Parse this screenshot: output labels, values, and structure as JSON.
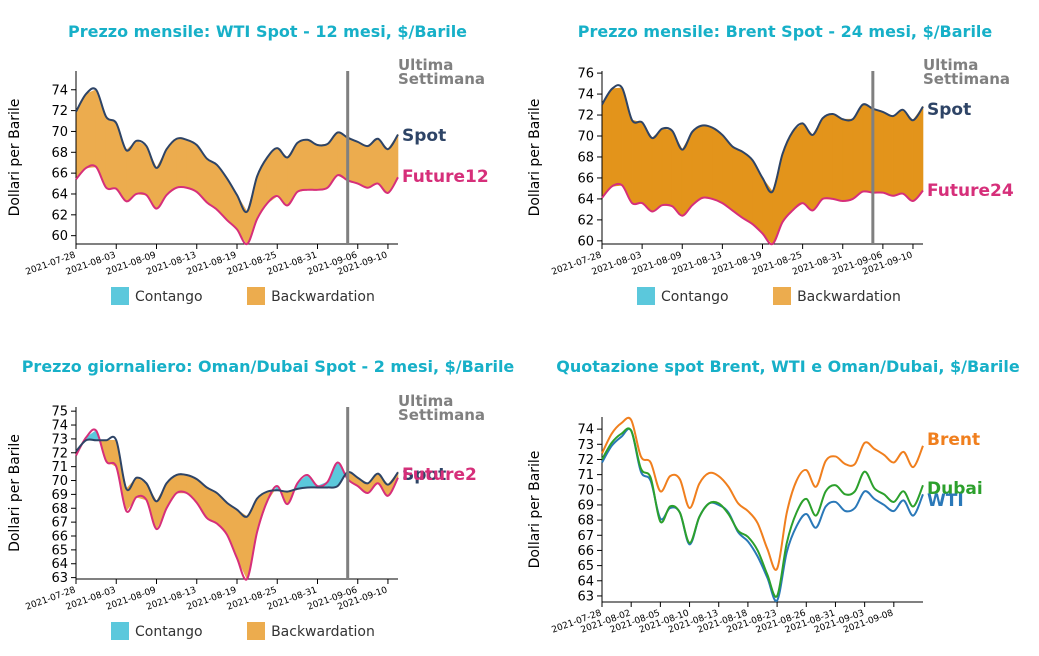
{
  "colors": {
    "title": "#17b0c8",
    "spot": "#2e4466",
    "future": "#d62f7a",
    "contango": "#5bc8dc",
    "backwardation": "#ecac4e",
    "backwardation_dark": "#e3941b",
    "week_line": "#808080",
    "brent": "#f07f1e",
    "dubai": "#2ca02c",
    "wti": "#2a78b8"
  },
  "legend": {
    "contango": "Contango",
    "backwardation": "Backwardation"
  },
  "last_week_label": [
    "Ultima",
    "Settimana"
  ],
  "chart_data": [
    {
      "type": "area",
      "title": "Prezzo mensile: WTI Spot - 12 mesi, $/Barile",
      "ylabel": "Dollari per Barile",
      "xlabel": "",
      "x_ticks": [
        "2021-07-28",
        "2021-08-03",
        "2021-08-09",
        "2021-08-13",
        "2021-08-19",
        "2021-08-25",
        "2021-08-31",
        "2021-09-06",
        "2021-09-10"
      ],
      "x_tick_pos": [
        0,
        4,
        8,
        12,
        16,
        20,
        24,
        28,
        31
      ],
      "ylim": [
        59.2,
        75.8
      ],
      "y_ticks": [
        60,
        62,
        64,
        66,
        68,
        70,
        72,
        74
      ],
      "last_week_index": 27,
      "series": [
        {
          "name": "Spot",
          "values": [
            71.9,
            73.6,
            74.0,
            71.4,
            70.8,
            68.2,
            69.1,
            68.6,
            66.5,
            68.3,
            69.3,
            69.2,
            68.7,
            67.4,
            66.8,
            65.5,
            63.9,
            62.3,
            65.7,
            67.5,
            68.4,
            67.5,
            68.9,
            69.2,
            68.7,
            68.8,
            69.9,
            69.4,
            69.0,
            68.6,
            69.3,
            68.3,
            69.7
          ]
        },
        {
          "name": "Future12",
          "values": [
            65.4,
            66.5,
            66.6,
            64.6,
            64.5,
            63.3,
            64.0,
            63.9,
            62.6,
            63.9,
            64.6,
            64.6,
            64.2,
            63.2,
            62.5,
            61.5,
            60.6,
            59.2,
            61.6,
            63.1,
            63.8,
            62.9,
            64.2,
            64.4,
            64.4,
            64.6,
            65.8,
            65.3,
            65.0,
            64.6,
            65.0,
            64.1,
            65.6
          ]
        }
      ]
    },
    {
      "type": "area",
      "title": "Prezzo mensile: Brent Spot - 24 mesi, $/Barile",
      "ylabel": "Dollari per Barile",
      "xlabel": "",
      "x_ticks": [
        "2021-07-28",
        "2021-08-03",
        "2021-08-09",
        "2021-08-13",
        "2021-08-19",
        "2021-08-25",
        "2021-08-31",
        "2021-09-06",
        "2021-09-10"
      ],
      "x_tick_pos": [
        0,
        4,
        8,
        12,
        16,
        20,
        24,
        28,
        31
      ],
      "ylim": [
        59.7,
        76.2
      ],
      "y_ticks": [
        60,
        62,
        64,
        66,
        68,
        70,
        72,
        74,
        76
      ],
      "last_week_index": 27,
      "series": [
        {
          "name": "Spot",
          "values": [
            73.0,
            74.5,
            74.6,
            71.5,
            71.3,
            69.8,
            70.7,
            70.5,
            68.7,
            70.4,
            71.0,
            70.8,
            70.1,
            69.0,
            68.5,
            67.7,
            66.0,
            64.7,
            68.3,
            70.4,
            71.2,
            70.1,
            71.7,
            72.1,
            71.6,
            71.6,
            73.0,
            72.6,
            72.3,
            71.9,
            72.5,
            71.5,
            72.8
          ]
        },
        {
          "name": "Future24",
          "values": [
            64.1,
            65.2,
            65.3,
            63.6,
            63.6,
            62.8,
            63.4,
            63.3,
            62.4,
            63.4,
            64.1,
            64.0,
            63.6,
            62.9,
            62.2,
            61.6,
            60.7,
            59.7,
            61.8,
            62.9,
            63.6,
            62.9,
            64.0,
            64.0,
            63.8,
            64.0,
            64.7,
            64.6,
            64.6,
            64.3,
            64.5,
            63.8,
            64.8
          ]
        }
      ]
    },
    {
      "type": "area",
      "title": "Prezzo giornaliero: Oman/Dubai Spot - 2 mesi, $/Barile",
      "ylabel": "Dollari per Barile",
      "xlabel": "",
      "x_ticks": [
        "2021-07-28",
        "2021-08-03",
        "2021-08-09",
        "2021-08-13",
        "2021-08-19",
        "2021-08-25",
        "2021-08-31",
        "2021-09-06",
        "2021-09-10"
      ],
      "x_tick_pos": [
        0,
        4,
        8,
        12,
        16,
        20,
        24,
        28,
        31
      ],
      "ylim": [
        62.9,
        75.3
      ],
      "y_ticks": [
        63,
        64,
        65,
        66,
        67,
        68,
        69,
        70,
        71,
        72,
        73,
        74,
        75
      ],
      "last_week_index": 27,
      "series": [
        {
          "name": "Spot",
          "values": [
            72.1,
            72.9,
            72.9,
            72.9,
            72.9,
            69.4,
            70.2,
            69.8,
            68.5,
            69.8,
            70.4,
            70.4,
            70.1,
            69.5,
            69.1,
            68.4,
            67.9,
            67.4,
            68.7,
            69.2,
            69.3,
            69.2,
            69.4,
            69.5,
            69.5,
            69.5,
            69.6,
            70.6,
            70.2,
            69.8,
            70.5,
            69.7,
            70.6
          ]
        },
        {
          "name": "Future2",
          "values": [
            71.8,
            73.1,
            73.6,
            71.4,
            71.0,
            67.8,
            68.8,
            68.6,
            66.5,
            68.0,
            69.1,
            69.1,
            68.4,
            67.3,
            66.9,
            66.1,
            64.4,
            62.9,
            66.3,
            68.5,
            69.6,
            68.3,
            69.8,
            70.4,
            69.6,
            69.9,
            71.3,
            70.1,
            69.6,
            69.1,
            69.8,
            68.9,
            70.2
          ]
        }
      ]
    },
    {
      "type": "line",
      "title": "Quotazione spot Brent, WTI e Oman/Dubai, $/Barile",
      "ylabel": "Dollari per Barile",
      "xlabel": "",
      "x_ticks": [
        "2021-07-28",
        "2021-08-02",
        "2021-08-05",
        "2021-08-10",
        "2021-08-13",
        "2021-08-18",
        "2021-08-23",
        "2021-08-26",
        "2021-08-31",
        "2021-09-03",
        "2021-09-08"
      ],
      "x_tick_pos": [
        0,
        3,
        6,
        9,
        12,
        15,
        18,
        21,
        24,
        27,
        30
      ],
      "ylim": [
        62.6,
        74.8
      ],
      "y_ticks": [
        63,
        64,
        65,
        66,
        67,
        68,
        69,
        70,
        71,
        72,
        73,
        74
      ],
      "series": [
        {
          "name": "Brent",
          "values": [
            72.4,
            73.7,
            74.4,
            74.6,
            72.2,
            71.8,
            69.9,
            70.9,
            70.7,
            68.8,
            70.4,
            71.1,
            70.9,
            70.2,
            69.1,
            68.6,
            67.8,
            66.1,
            64.8,
            68.5,
            70.6,
            71.3,
            70.2,
            71.9,
            72.2,
            71.7,
            71.7,
            73.1,
            72.7,
            72.3,
            71.8,
            72.5,
            71.5,
            72.9
          ]
        },
        {
          "name": "Dubai",
          "values": [
            72.0,
            73.1,
            73.7,
            73.9,
            71.4,
            70.8,
            67.9,
            68.9,
            68.5,
            66.5,
            68.2,
            69.1,
            69.1,
            68.4,
            67.3,
            66.9,
            66.0,
            64.4,
            63.0,
            66.5,
            68.5,
            69.4,
            68.3,
            69.9,
            70.3,
            69.7,
            69.9,
            71.2,
            70.1,
            69.7,
            69.2,
            69.9,
            68.9,
            70.3
          ]
        },
        {
          "name": "WTI",
          "values": [
            71.8,
            72.9,
            73.5,
            73.9,
            71.2,
            70.6,
            68.1,
            68.8,
            68.5,
            66.4,
            68.2,
            69.1,
            69.0,
            68.5,
            67.2,
            66.6,
            65.6,
            64.2,
            62.7,
            65.9,
            67.6,
            68.4,
            67.5,
            68.9,
            69.2,
            68.6,
            68.8,
            69.9,
            69.4,
            69.0,
            68.6,
            69.3,
            68.3,
            69.7
          ]
        }
      ]
    }
  ]
}
